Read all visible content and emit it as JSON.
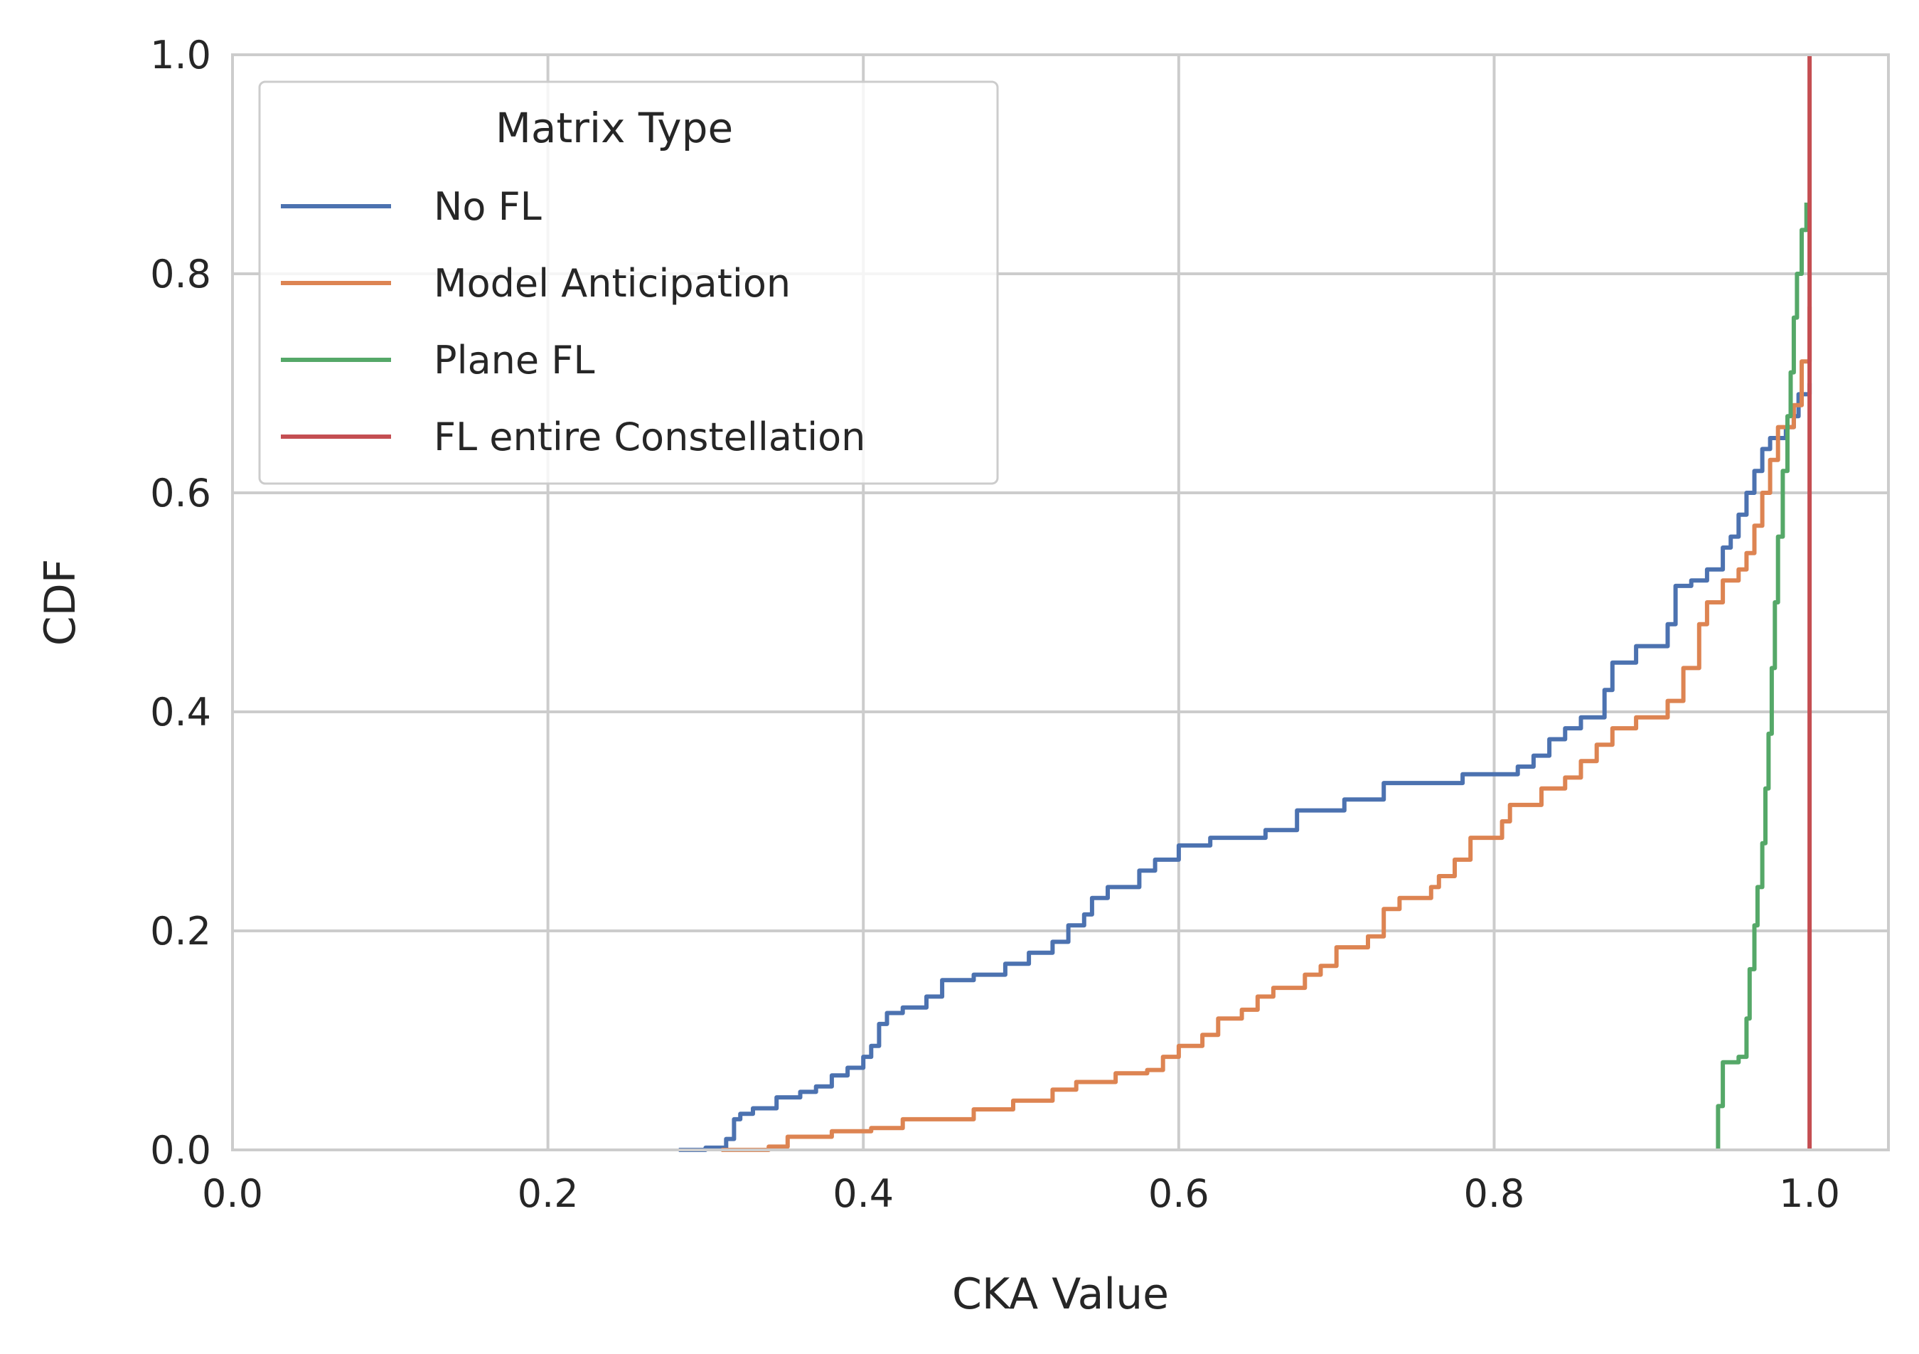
{
  "chart_data": {
    "type": "line",
    "xlabel": "CKA Value",
    "ylabel": "CDF",
    "xlim": [
      0.0,
      1.05
    ],
    "ylim": [
      0.0,
      1.0
    ],
    "xticks": [
      0.0,
      0.2,
      0.4,
      0.6,
      0.8,
      1.0
    ],
    "yticks": [
      0.0,
      0.2,
      0.4,
      0.6,
      0.8,
      1.0
    ],
    "xtick_labels": [
      "0.0",
      "0.2",
      "0.4",
      "0.6",
      "0.8",
      "1.0"
    ],
    "ytick_labels": [
      "0.0",
      "0.2",
      "0.4",
      "0.6",
      "0.8",
      "1.0"
    ],
    "grid": true,
    "legend": {
      "title": "Matrix Type",
      "placement": "top-left"
    },
    "series": [
      {
        "name": "No FL",
        "color": "#4c72b0",
        "points": [
          [
            0.283,
            0.0
          ],
          [
            0.3,
            0.002
          ],
          [
            0.313,
            0.01
          ],
          [
            0.318,
            0.028
          ],
          [
            0.322,
            0.033
          ],
          [
            0.33,
            0.038
          ],
          [
            0.345,
            0.048
          ],
          [
            0.36,
            0.053
          ],
          [
            0.37,
            0.058
          ],
          [
            0.38,
            0.068
          ],
          [
            0.39,
            0.075
          ],
          [
            0.4,
            0.085
          ],
          [
            0.405,
            0.095
          ],
          [
            0.41,
            0.115
          ],
          [
            0.415,
            0.125
          ],
          [
            0.425,
            0.13
          ],
          [
            0.44,
            0.14
          ],
          [
            0.45,
            0.155
          ],
          [
            0.47,
            0.16
          ],
          [
            0.49,
            0.17
          ],
          [
            0.505,
            0.18
          ],
          [
            0.52,
            0.19
          ],
          [
            0.53,
            0.205
          ],
          [
            0.54,
            0.215
          ],
          [
            0.545,
            0.23
          ],
          [
            0.555,
            0.24
          ],
          [
            0.575,
            0.255
          ],
          [
            0.585,
            0.265
          ],
          [
            0.6,
            0.278
          ],
          [
            0.62,
            0.285
          ],
          [
            0.655,
            0.292
          ],
          [
            0.675,
            0.31
          ],
          [
            0.705,
            0.32
          ],
          [
            0.73,
            0.335
          ],
          [
            0.78,
            0.343
          ],
          [
            0.815,
            0.35
          ],
          [
            0.825,
            0.36
          ],
          [
            0.835,
            0.375
          ],
          [
            0.845,
            0.385
          ],
          [
            0.855,
            0.395
          ],
          [
            0.87,
            0.42
          ],
          [
            0.875,
            0.445
          ],
          [
            0.89,
            0.46
          ],
          [
            0.91,
            0.48
          ],
          [
            0.915,
            0.515
          ],
          [
            0.925,
            0.52
          ],
          [
            0.935,
            0.53
          ],
          [
            0.945,
            0.55
          ],
          [
            0.95,
            0.56
          ],
          [
            0.955,
            0.58
          ],
          [
            0.96,
            0.6
          ],
          [
            0.965,
            0.62
          ],
          [
            0.97,
            0.64
          ],
          [
            0.975,
            0.65
          ],
          [
            0.985,
            0.66
          ],
          [
            0.99,
            0.67
          ],
          [
            0.993,
            0.69
          ],
          [
            1.0,
            0.7
          ]
        ]
      },
      {
        "name": "Model Anticipation",
        "color": "#dd8452",
        "points": [
          [
            0.31,
            0.0
          ],
          [
            0.34,
            0.003
          ],
          [
            0.352,
            0.012
          ],
          [
            0.38,
            0.017
          ],
          [
            0.405,
            0.02
          ],
          [
            0.425,
            0.028
          ],
          [
            0.47,
            0.037
          ],
          [
            0.495,
            0.045
          ],
          [
            0.52,
            0.055
          ],
          [
            0.535,
            0.062
          ],
          [
            0.56,
            0.07
          ],
          [
            0.58,
            0.073
          ],
          [
            0.59,
            0.085
          ],
          [
            0.6,
            0.095
          ],
          [
            0.615,
            0.105
          ],
          [
            0.625,
            0.12
          ],
          [
            0.64,
            0.128
          ],
          [
            0.65,
            0.14
          ],
          [
            0.66,
            0.148
          ],
          [
            0.68,
            0.16
          ],
          [
            0.69,
            0.168
          ],
          [
            0.7,
            0.185
          ],
          [
            0.72,
            0.195
          ],
          [
            0.73,
            0.22
          ],
          [
            0.74,
            0.23
          ],
          [
            0.76,
            0.24
          ],
          [
            0.765,
            0.25
          ],
          [
            0.775,
            0.265
          ],
          [
            0.785,
            0.285
          ],
          [
            0.805,
            0.3
          ],
          [
            0.81,
            0.315
          ],
          [
            0.83,
            0.33
          ],
          [
            0.845,
            0.34
          ],
          [
            0.855,
            0.355
          ],
          [
            0.865,
            0.37
          ],
          [
            0.875,
            0.385
          ],
          [
            0.89,
            0.395
          ],
          [
            0.91,
            0.41
          ],
          [
            0.92,
            0.44
          ],
          [
            0.93,
            0.48
          ],
          [
            0.935,
            0.5
          ],
          [
            0.945,
            0.52
          ],
          [
            0.955,
            0.53
          ],
          [
            0.96,
            0.545
          ],
          [
            0.965,
            0.57
          ],
          [
            0.97,
            0.6
          ],
          [
            0.975,
            0.63
          ],
          [
            0.98,
            0.66
          ],
          [
            0.99,
            0.68
          ],
          [
            0.995,
            0.72
          ],
          [
            1.0,
            0.77
          ]
        ]
      },
      {
        "name": "Plane FL",
        "color": "#55a868",
        "points": [
          [
            0.942,
            0.0
          ],
          [
            0.942,
            0.04
          ],
          [
            0.945,
            0.08
          ],
          [
            0.955,
            0.085
          ],
          [
            0.96,
            0.12
          ],
          [
            0.962,
            0.165
          ],
          [
            0.965,
            0.205
          ],
          [
            0.967,
            0.24
          ],
          [
            0.97,
            0.28
          ],
          [
            0.972,
            0.33
          ],
          [
            0.974,
            0.38
          ],
          [
            0.976,
            0.44
          ],
          [
            0.978,
            0.5
          ],
          [
            0.98,
            0.56
          ],
          [
            0.983,
            0.62
          ],
          [
            0.986,
            0.67
          ],
          [
            0.988,
            0.71
          ],
          [
            0.99,
            0.76
          ],
          [
            0.992,
            0.8
          ],
          [
            0.995,
            0.84
          ],
          [
            0.998,
            0.865
          ]
        ]
      },
      {
        "name": "FL entire Constellation",
        "color": "#c44e52",
        "points": [
          [
            1.0,
            0.0
          ],
          [
            1.0,
            1.0
          ]
        ]
      }
    ]
  }
}
